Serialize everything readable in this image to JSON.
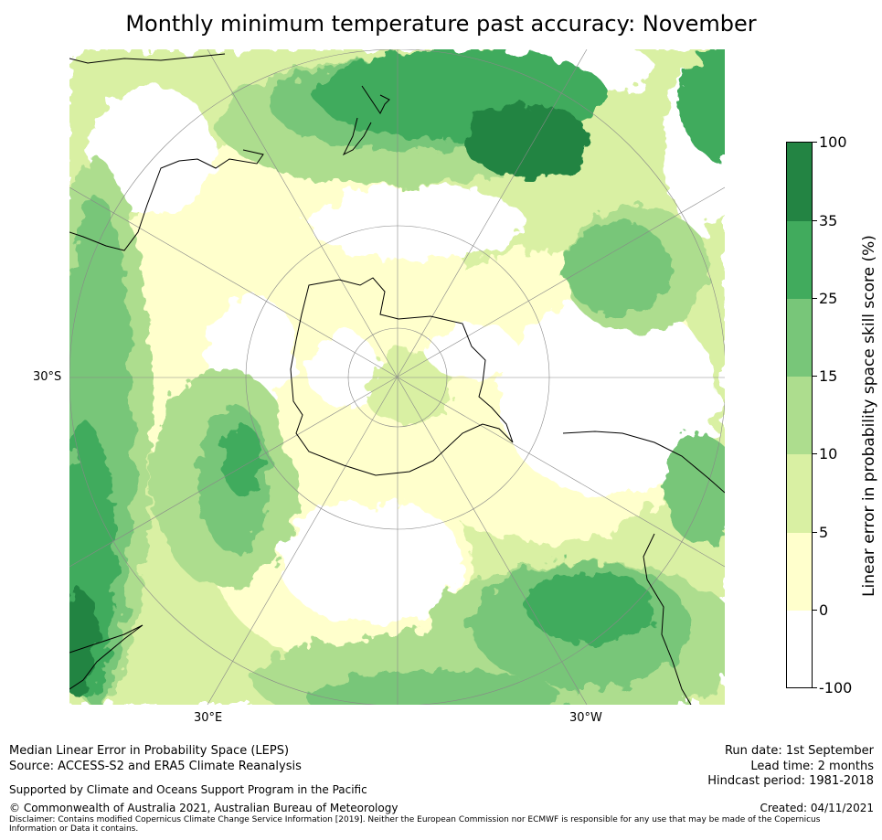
{
  "title": "Monthly minimum temperature past accuracy: November",
  "map": {
    "projection": "south polar stereographic",
    "latitude_label": "30°S",
    "longitude_labels": [
      "30°E",
      "30°W"
    ],
    "background_color": "#ffffff",
    "coastline_color": "#000000"
  },
  "colorbar": {
    "title": "Linear error in probability space skill score (%)",
    "tick_labels": [
      "100",
      "35",
      "25",
      "15",
      "10",
      "5",
      "0",
      "-100"
    ],
    "levels": [
      {
        "from": -100,
        "to": 0,
        "color": "#ffffff"
      },
      {
        "from": 0,
        "to": 5,
        "color": "#ffffcc"
      },
      {
        "from": 5,
        "to": 10,
        "color": "#d9f0a3"
      },
      {
        "from": 10,
        "to": 15,
        "color": "#addd8e"
      },
      {
        "from": 15,
        "to": 25,
        "color": "#78c679"
      },
      {
        "from": 25,
        "to": 35,
        "color": "#41ab5d"
      },
      {
        "from": 35,
        "to": 100,
        "color": "#238443"
      }
    ]
  },
  "footer": {
    "line1": "Median Linear Error in Probability Space (LEPS)",
    "line2": "Source: ACCESS-S2 and ERA5 Climate Reanalysis",
    "support": "Supported by Climate and Oceans Support Program in the Pacific",
    "copyright": "© Commonwealth of Australia 2021, Australian Bureau of Meteorology",
    "disclaimer": "Disclaimer: Contains modified Copernicus Climate Change Service Information [2019]. Neither the European Commission nor ECMWF is responsible for any use that may be made of the Copernicus Information or Data it contains.",
    "run_date": "Run date: 1st September",
    "lead_time": "Lead time: 2 months",
    "hindcast": "Hindcast period: 1981-2018",
    "created": "Created: 04/11/2021"
  }
}
